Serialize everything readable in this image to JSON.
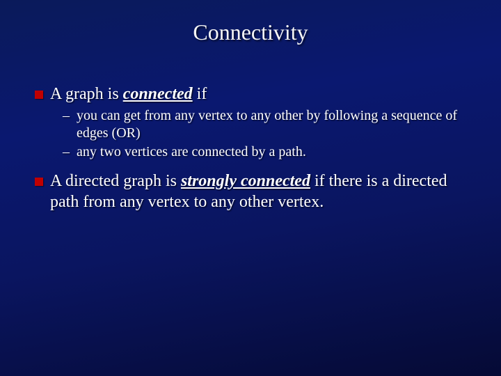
{
  "title": "Connectivity",
  "bullets": [
    {
      "pre": "A graph is ",
      "emph": "connected",
      "post": " if",
      "sub": [
        "you can get from any vertex to any other by following a sequence of edges (OR)",
        "any two vertices are connected by a path."
      ]
    },
    {
      "pre": "A directed graph is ",
      "emph": "strongly connected",
      "post": " if there is a directed path from any vertex to any other vertex.",
      "sub": []
    }
  ],
  "colors": {
    "bullet_square": "#c00000",
    "text": "#ffffff",
    "title": "#f5f5f5",
    "bg_top": "#0a1a5a",
    "bg_bottom": "#050a35"
  },
  "fonts": {
    "title_size_pt": 32,
    "body_size_pt": 24,
    "sub_size_pt": 20,
    "family": "Times New Roman"
  }
}
